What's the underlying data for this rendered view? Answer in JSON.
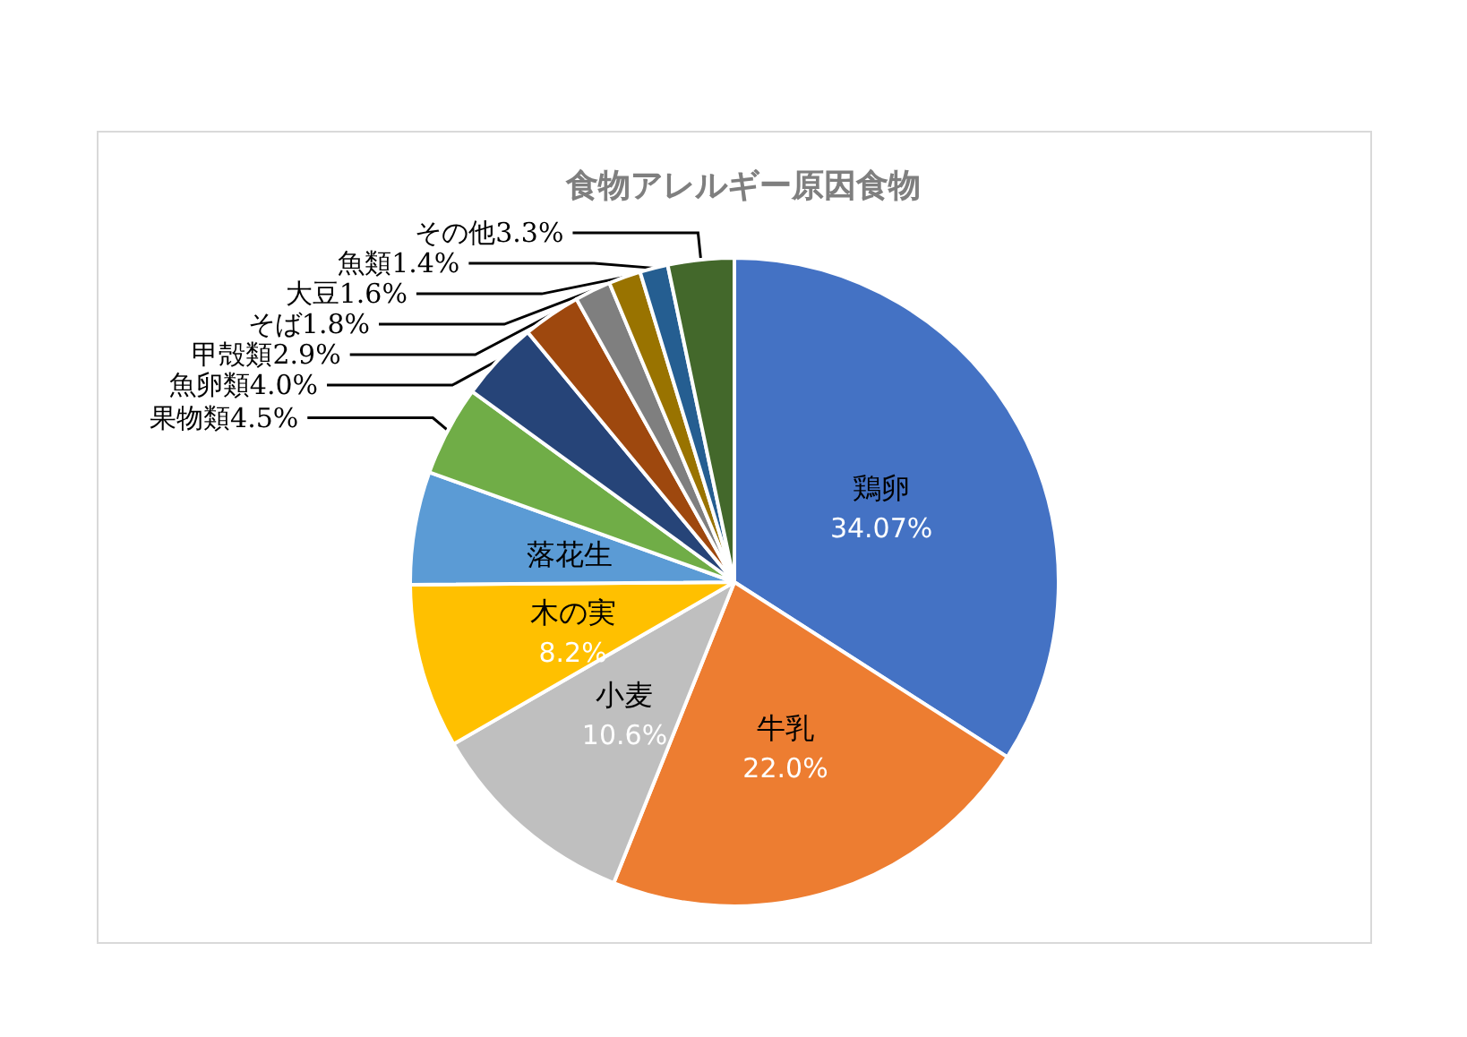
{
  "chart_data": {
    "type": "pie",
    "title": "食物アレルギー原因食物",
    "categories": [
      "鶏卵",
      "牛乳",
      "小麦",
      "木の実",
      "落花生",
      "果物類",
      "魚卵類",
      "甲殻類",
      "そば",
      "大豆",
      "魚類",
      "その他"
    ],
    "values": [
      34.07,
      22.0,
      10.6,
      8.2,
      5.63,
      4.5,
      4.0,
      2.9,
      1.8,
      1.6,
      1.4,
      3.3
    ],
    "value_labels": [
      "34.07%",
      "22.0%",
      "10.6%",
      "8.2%",
      null,
      "4.5%",
      "4.0%",
      "2.9%",
      "1.8%",
      "1.6%",
      "1.4%",
      "3.3%"
    ],
    "colors": [
      "#4472c4",
      "#ed7d31",
      "#bfbfbf",
      "#ffc000",
      "#5b9bd5",
      "#70ad47",
      "#264478",
      "#9e480e",
      "#7f7f7f",
      "#997300",
      "#255e91",
      "#43682b"
    ],
    "legend": false
  }
}
